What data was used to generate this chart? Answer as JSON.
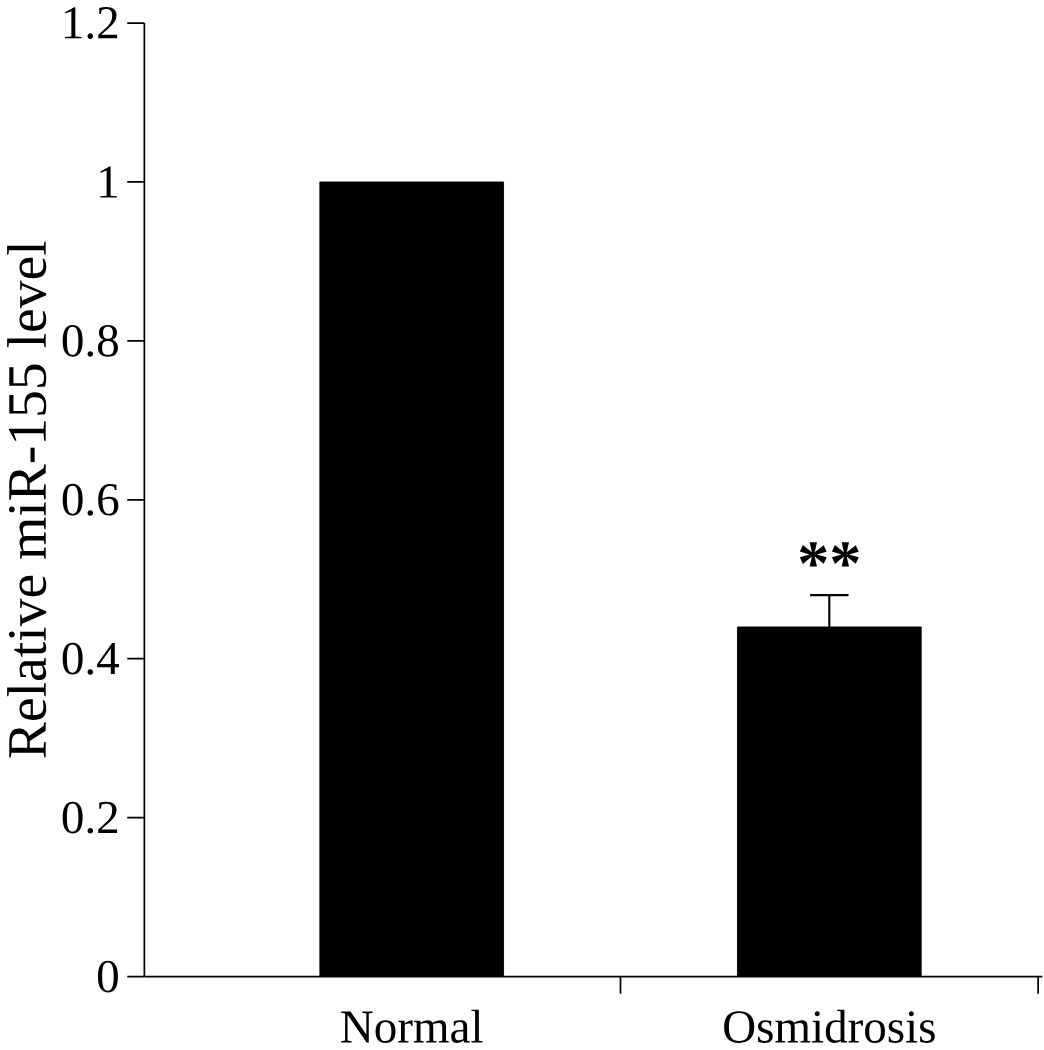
{
  "chart_data": {
    "type": "bar",
    "ylabel": "Relative miR-155 level",
    "categories": [
      "Normal",
      "Osmidrosis"
    ],
    "values": [
      1.0,
      0.44
    ],
    "errors": [
      null,
      0.04
    ],
    "color": "#000000",
    "ylim": [
      0,
      1.2
    ],
    "yticks": [
      0,
      0.2,
      0.4,
      0.6,
      0.8,
      1,
      1.2
    ],
    "annotations": [
      {
        "text": "**",
        "x": "Osmidrosis",
        "y": 0.49
      }
    ]
  }
}
